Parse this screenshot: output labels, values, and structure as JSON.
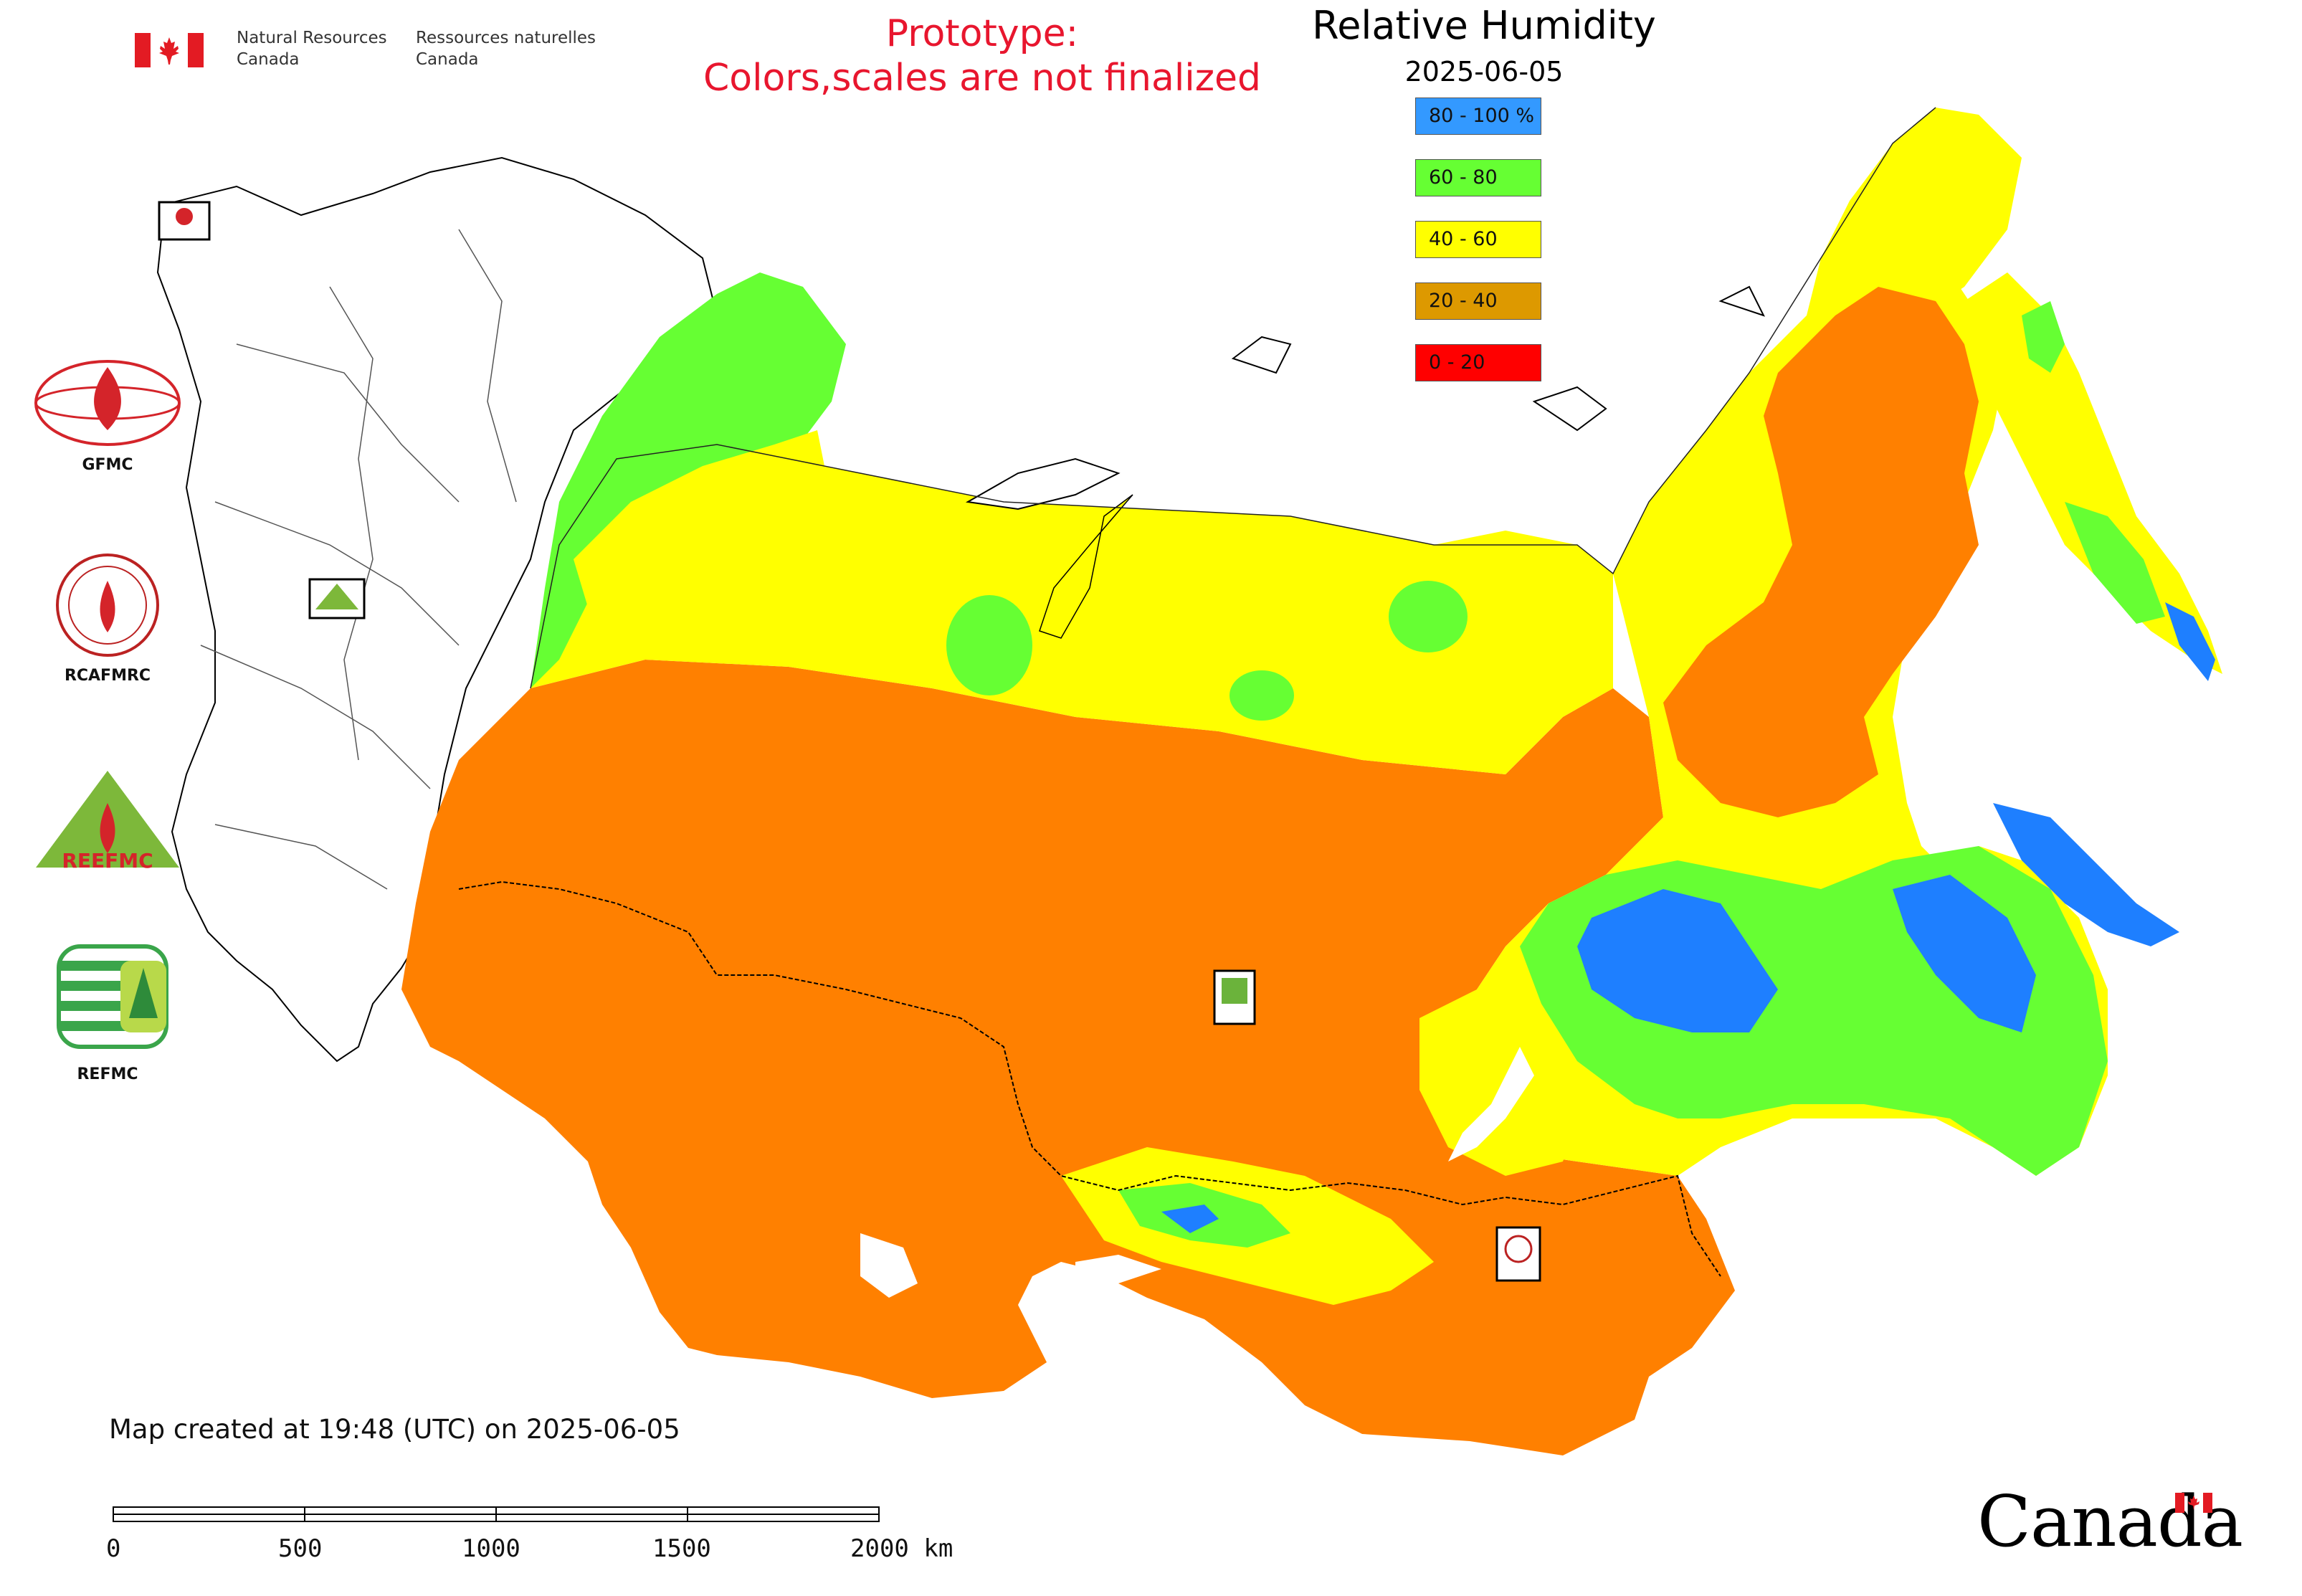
{
  "header": {
    "agency_en_1": "Natural Resources",
    "agency_en_2": "Canada",
    "agency_fr_1": "Ressources naturelles",
    "agency_fr_2": "Canada",
    "prototype_line1": "Prototype:",
    "prototype_line2": "Colors,scales are not finalized"
  },
  "map": {
    "title": "Relative Humidity",
    "date": "2025-06-05",
    "colors": {
      "orange": "#ff8000",
      "yellow": "#ffff00",
      "green": "#66ff33",
      "blue": "#1e7fff",
      "red": "#ff0000",
      "border": "#000000"
    }
  },
  "legend": [
    {
      "label": "80 - 100 %",
      "color": "#3399ff"
    },
    {
      "label": "60 - 80",
      "color": "#66ff33"
    },
    {
      "label": "40 - 60",
      "color": "#ffff00"
    },
    {
      "label": "20 - 40",
      "color": "#dd9900"
    },
    {
      "label": "0 - 20",
      "color": "#ff0000"
    }
  ],
  "logos": {
    "gfmc": "GFMC",
    "rcafmrc": "RCAFMRC",
    "reefmc": "REEFMC",
    "refmc": "REFMC"
  },
  "footer": {
    "created": "Map created at 19:48 (UTC) on 2025-06-05",
    "scale_ticks": [
      "0",
      "500",
      "1000",
      "1500",
      "2000 km"
    ],
    "wordmark": "Canada"
  }
}
